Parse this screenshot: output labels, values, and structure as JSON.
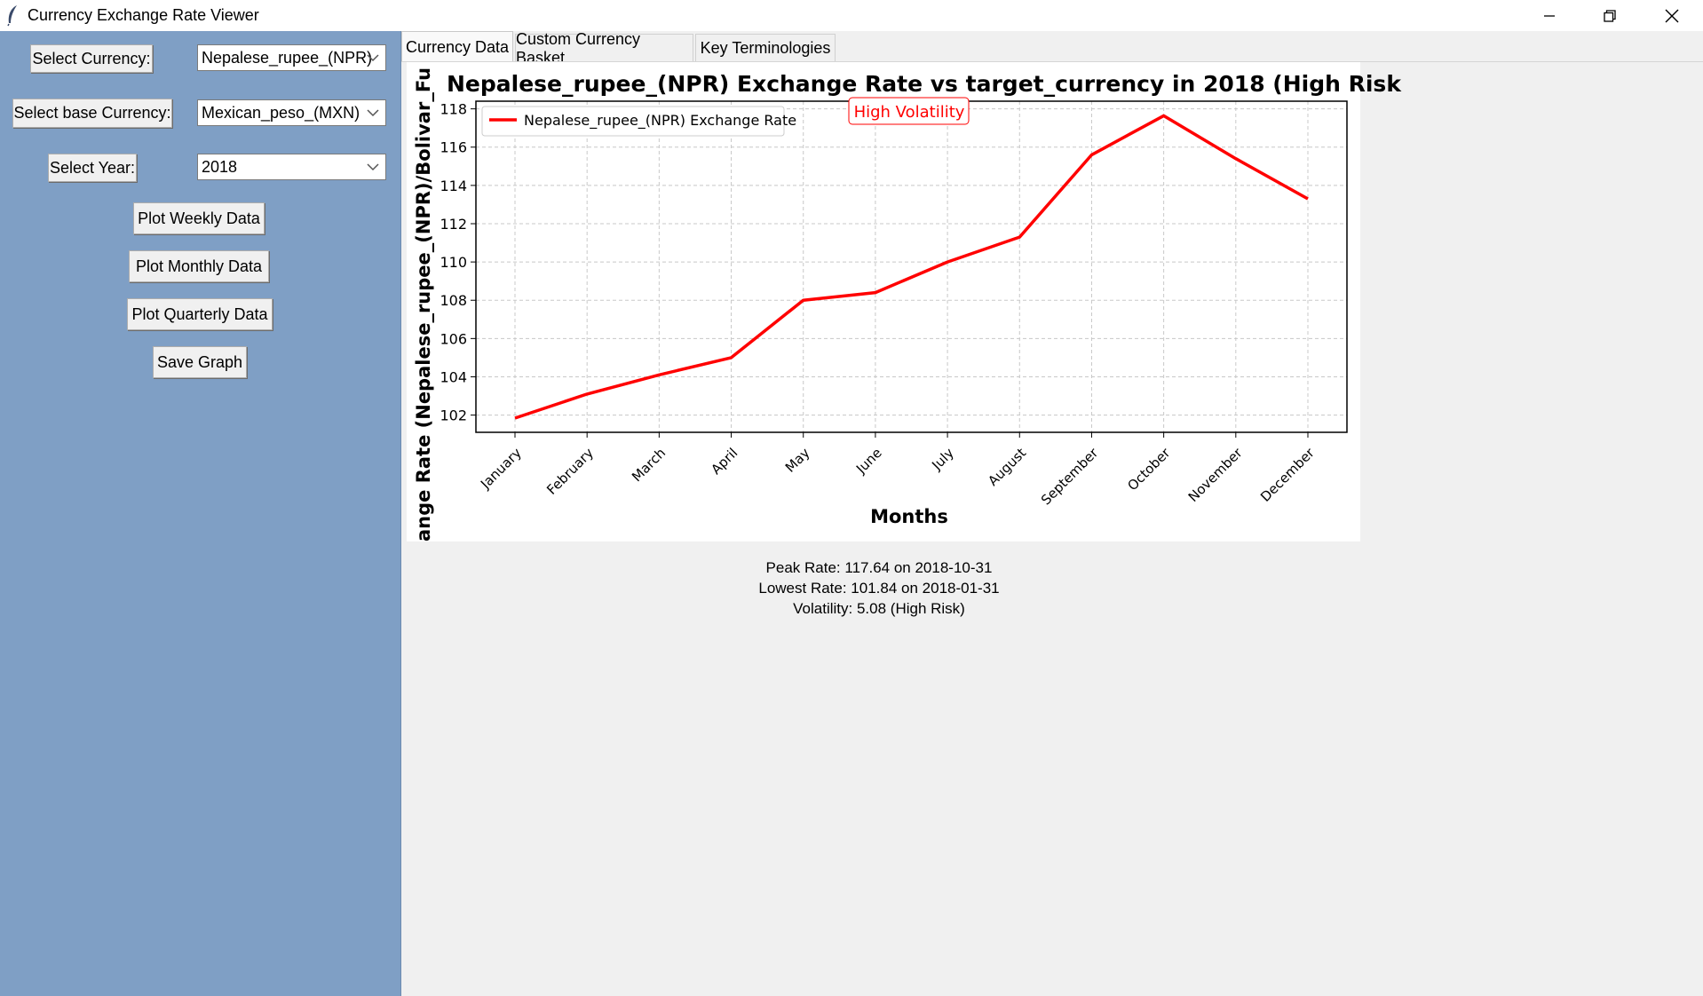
{
  "window": {
    "title": "Currency Exchange Rate Viewer"
  },
  "sidebar": {
    "currency_label": "Select Currency:",
    "currency_value": "Nepalese_rupee_(NPR)",
    "base_label": "Select base Currency:",
    "base_value": "Mexican_peso_(MXN)",
    "year_label": "Select Year:",
    "year_value": "2018",
    "weekly_button": "Plot Weekly Data",
    "monthly_button": "Plot Monthly Data",
    "quarterly_button": "Plot Quarterly Data",
    "save_button": "Save Graph"
  },
  "tabs": [
    "Currency Data",
    "Custom Currency Basket",
    "Key Terminologies"
  ],
  "stats": {
    "peak": "Peak Rate: 117.64 on 2018-10-31",
    "lowest": "Lowest Rate: 101.84 on 2018-01-31",
    "volatility": "Volatility: 5.08 (High Risk)"
  },
  "colors": {
    "sidebar": "#7f9fc5",
    "series": "#ff0000"
  },
  "chart_data": {
    "type": "line",
    "title": "Nepalese_rupee_(NPR) Exchange Rate vs target_currency in 2018 (High Risk",
    "xlabel": "Months",
    "ylabel": "ange Rate (Nepalese_rupee_(NPR)/Bolivar_Fu",
    "annotation": "High Volatility",
    "categories": [
      "January",
      "February",
      "March",
      "April",
      "May",
      "June",
      "July",
      "August",
      "September",
      "October",
      "November",
      "December"
    ],
    "series": [
      {
        "name": "Nepalese_rupee_(NPR) Exchange Rate",
        "values": [
          101.84,
          103.1,
          104.1,
          105.0,
          108.0,
          108.4,
          110.0,
          111.3,
          115.6,
          117.64,
          115.4,
          113.3
        ]
      }
    ],
    "yticks": [
      102,
      104,
      106,
      108,
      110,
      112,
      114,
      116,
      118
    ],
    "ylim": [
      101.1,
      118.4
    ],
    "grid": true,
    "legend": "top-left"
  }
}
